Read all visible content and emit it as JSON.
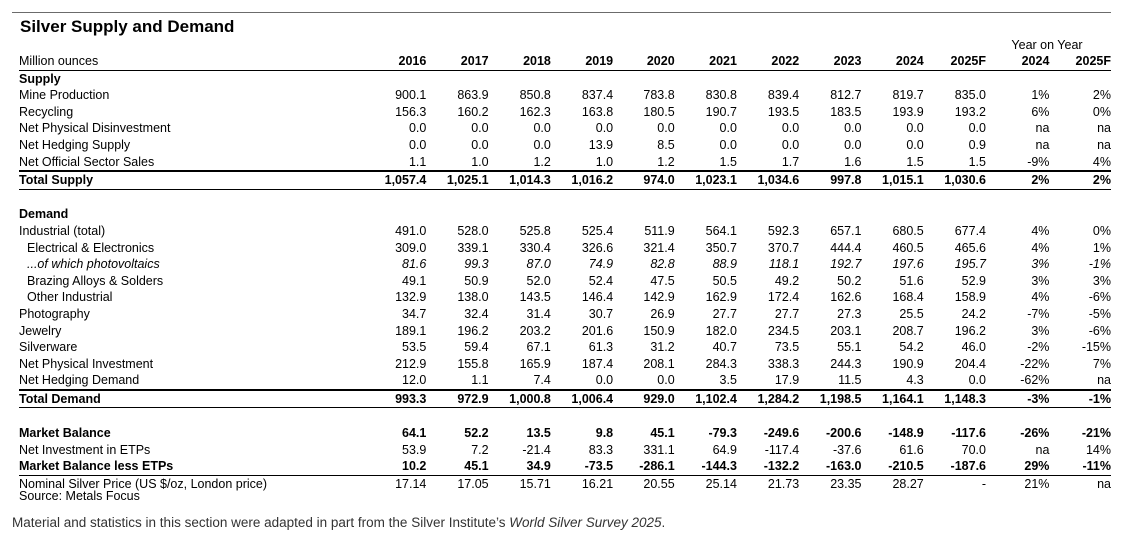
{
  "title": "Silver Supply and Demand",
  "units_label": "Million ounces",
  "yoy_label": "Year on Year",
  "years": [
    "2016",
    "2017",
    "2018",
    "2019",
    "2020",
    "2021",
    "2022",
    "2023",
    "2024",
    "2025F"
  ],
  "yoy_years": [
    "2024",
    "2025F"
  ],
  "supply": {
    "heading": "Supply",
    "rows": [
      {
        "label": "Mine Production",
        "values": [
          "900.1",
          "863.9",
          "850.8",
          "837.4",
          "783.8",
          "830.8",
          "839.4",
          "812.7",
          "819.7",
          "835.0"
        ],
        "yoy": [
          "1%",
          "2%"
        ]
      },
      {
        "label": "Recycling",
        "values": [
          "156.3",
          "160.2",
          "162.3",
          "163.8",
          "180.5",
          "190.7",
          "193.5",
          "183.5",
          "193.9",
          "193.2"
        ],
        "yoy": [
          "6%",
          "0%"
        ]
      },
      {
        "label": "Net Physical Disinvestment",
        "values": [
          "0.0",
          "0.0",
          "0.0",
          "0.0",
          "0.0",
          "0.0",
          "0.0",
          "0.0",
          "0.0",
          "0.0"
        ],
        "yoy": [
          "na",
          "na"
        ]
      },
      {
        "label": "Net Hedging Supply",
        "values": [
          "0.0",
          "0.0",
          "0.0",
          "13.9",
          "8.5",
          "0.0",
          "0.0",
          "0.0",
          "0.0",
          "0.9"
        ],
        "yoy": [
          "na",
          "na"
        ]
      },
      {
        "label": "Net Official Sector Sales",
        "values": [
          "1.1",
          "1.0",
          "1.2",
          "1.0",
          "1.2",
          "1.5",
          "1.7",
          "1.6",
          "1.5",
          "1.5"
        ],
        "yoy": [
          "-9%",
          "4%"
        ]
      }
    ],
    "total": {
      "label": "Total Supply",
      "values": [
        "1,057.4",
        "1,025.1",
        "1,014.3",
        "1,016.2",
        "974.0",
        "1,023.1",
        "1,034.6",
        "997.8",
        "1,015.1",
        "1,030.6"
      ],
      "yoy": [
        "2%",
        "2%"
      ]
    }
  },
  "demand": {
    "heading": "Demand",
    "industrial": {
      "label": "Industrial (total)",
      "values": [
        "491.0",
        "528.0",
        "525.8",
        "525.4",
        "511.9",
        "564.1",
        "592.3",
        "657.1",
        "680.5",
        "677.4"
      ],
      "yoy": [
        "4%",
        "0%"
      ]
    },
    "electrical": {
      "label": "Electrical & Electronics",
      "values": [
        "309.0",
        "339.1",
        "330.4",
        "326.6",
        "321.4",
        "350.7",
        "370.7",
        "444.4",
        "460.5",
        "465.6"
      ],
      "yoy": [
        "4%",
        "1%"
      ]
    },
    "pv": {
      "label": "...of which photovoltaics",
      "values": [
        "81.6",
        "99.3",
        "87.0",
        "74.9",
        "82.8",
        "88.9",
        "118.1",
        "192.7",
        "197.6",
        "195.7"
      ],
      "yoy": [
        "3%",
        "-1%"
      ]
    },
    "brazing": {
      "label": "Brazing Alloys & Solders",
      "values": [
        "49.1",
        "50.9",
        "52.0",
        "52.4",
        "47.5",
        "50.5",
        "49.2",
        "50.2",
        "51.6",
        "52.9"
      ],
      "yoy": [
        "3%",
        "3%"
      ]
    },
    "other": {
      "label": "Other Industrial",
      "values": [
        "132.9",
        "138.0",
        "143.5",
        "146.4",
        "142.9",
        "162.9",
        "172.4",
        "162.6",
        "168.4",
        "158.9"
      ],
      "yoy": [
        "4%",
        "-6%"
      ]
    },
    "rows": [
      {
        "label": "Photography",
        "values": [
          "34.7",
          "32.4",
          "31.4",
          "30.7",
          "26.9",
          "27.7",
          "27.7",
          "27.3",
          "25.5",
          "24.2"
        ],
        "yoy": [
          "-7%",
          "-5%"
        ]
      },
      {
        "label": "Jewelry",
        "values": [
          "189.1",
          "196.2",
          "203.2",
          "201.6",
          "150.9",
          "182.0",
          "234.5",
          "203.1",
          "208.7",
          "196.2"
        ],
        "yoy": [
          "3%",
          "-6%"
        ]
      },
      {
        "label": "Silverware",
        "values": [
          "53.5",
          "59.4",
          "67.1",
          "61.3",
          "31.2",
          "40.7",
          "73.5",
          "55.1",
          "54.2",
          "46.0"
        ],
        "yoy": [
          "-2%",
          "-15%"
        ]
      },
      {
        "label": "Net Physical Investment",
        "values": [
          "212.9",
          "155.8",
          "165.9",
          "187.4",
          "208.1",
          "284.3",
          "338.3",
          "244.3",
          "190.9",
          "204.4"
        ],
        "yoy": [
          "-22%",
          "7%"
        ]
      },
      {
        "label": "Net Hedging Demand",
        "values": [
          "12.0",
          "1.1",
          "7.4",
          "0.0",
          "0.0",
          "3.5",
          "17.9",
          "11.5",
          "4.3",
          "0.0"
        ],
        "yoy": [
          "-62%",
          "na"
        ]
      }
    ],
    "total": {
      "label": "Total Demand",
      "values": [
        "993.3",
        "972.9",
        "1,000.8",
        "1,006.4",
        "929.0",
        "1,102.4",
        "1,284.2",
        "1,198.5",
        "1,164.1",
        "1,148.3"
      ],
      "yoy": [
        "-3%",
        "-1%"
      ]
    }
  },
  "balance": {
    "market_balance": {
      "label": "Market Balance",
      "values": [
        "64.1",
        "52.2",
        "13.5",
        "9.8",
        "45.1",
        "-79.3",
        "-249.6",
        "-200.6",
        "-148.9",
        "-117.6"
      ],
      "yoy": [
        "-26%",
        "-21%"
      ]
    },
    "etps": {
      "label": "Net Investment in ETPs",
      "values": [
        "53.9",
        "7.2",
        "-21.4",
        "83.3",
        "331.1",
        "64.9",
        "-117.4",
        "-37.6",
        "61.6",
        "70.0"
      ],
      "yoy": [
        "na",
        "14%"
      ]
    },
    "less_etps": {
      "label": "Market Balance less ETPs",
      "values": [
        "10.2",
        "45.1",
        "34.9",
        "-73.5",
        "-286.1",
        "-144.3",
        "-132.2",
        "-163.0",
        "-210.5",
        "-187.6"
      ],
      "yoy": [
        "29%",
        "-11%"
      ]
    },
    "price": {
      "label": "Nominal Silver Price (US $/oz, London price)",
      "values": [
        "17.14",
        "17.05",
        "15.71",
        "16.21",
        "20.55",
        "25.14",
        "21.73",
        "23.35",
        "28.27",
        "-"
      ],
      "yoy": [
        "21%",
        "na"
      ]
    }
  },
  "source": "Source: Metals Focus",
  "footnote": {
    "prefix": "Material and statistics in this section were adapted in part from the Silver Institute’s ",
    "italic": "World Silver Survey 2025",
    "suffix": "."
  }
}
